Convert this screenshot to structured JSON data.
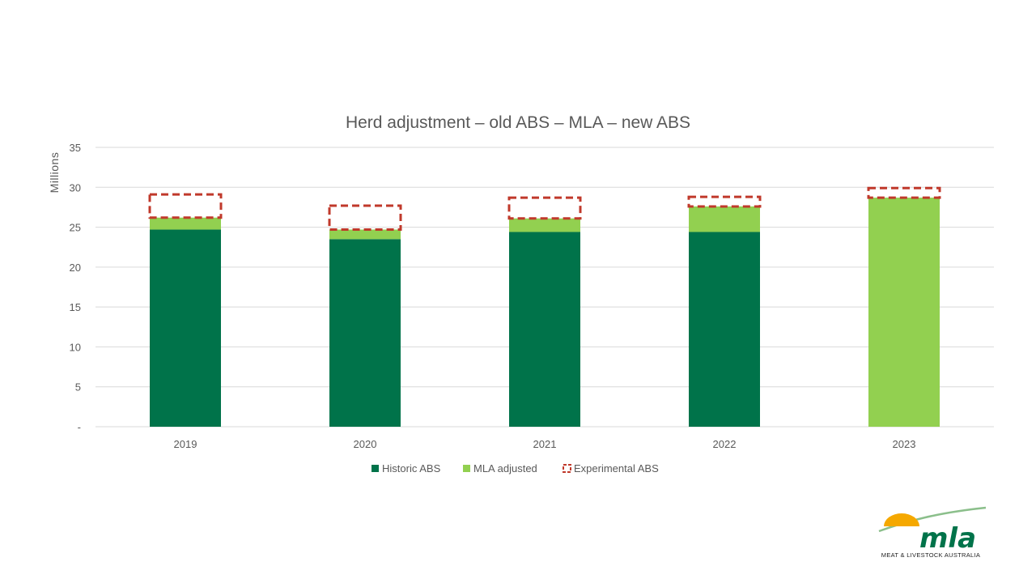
{
  "chart_data": {
    "type": "bar",
    "stacked": true,
    "title": "Herd adjustment – old ABS – MLA – new ABS",
    "xlabel": "",
    "ylabel": "Millions",
    "ylim": [
      0,
      35
    ],
    "yticks": [
      0,
      5,
      10,
      15,
      20,
      25,
      30,
      35
    ],
    "ytick_labels": [
      "-",
      "5",
      "10",
      "15",
      "20",
      "25",
      "30",
      "35"
    ],
    "categories": [
      "2019",
      "2020",
      "2021",
      "2022",
      "2023"
    ],
    "series": [
      {
        "name": "Historic ABS",
        "type": "bar",
        "color": "#00734a",
        "values": [
          24.7,
          23.5,
          24.4,
          24.4,
          0
        ]
      },
      {
        "name": "MLA adjusted",
        "type": "bar",
        "color": "#92d050",
        "values": [
          1.5,
          1.2,
          1.7,
          3.2,
          28.7
        ]
      },
      {
        "name": "Experimental ABS",
        "type": "dashed-box",
        "color": "#c0392b",
        "values": [
          2.9,
          3.0,
          2.6,
          1.2,
          1.2
        ]
      }
    ],
    "grid": true,
    "legend_position": "bottom"
  },
  "logo": {
    "text": "mla",
    "subtitle": "MEAT & LIVESTOCK AUSTRALIA",
    "colors": {
      "green": "#00734a",
      "sun": "#f5a800",
      "swoosh": "#8bbf8b"
    }
  }
}
